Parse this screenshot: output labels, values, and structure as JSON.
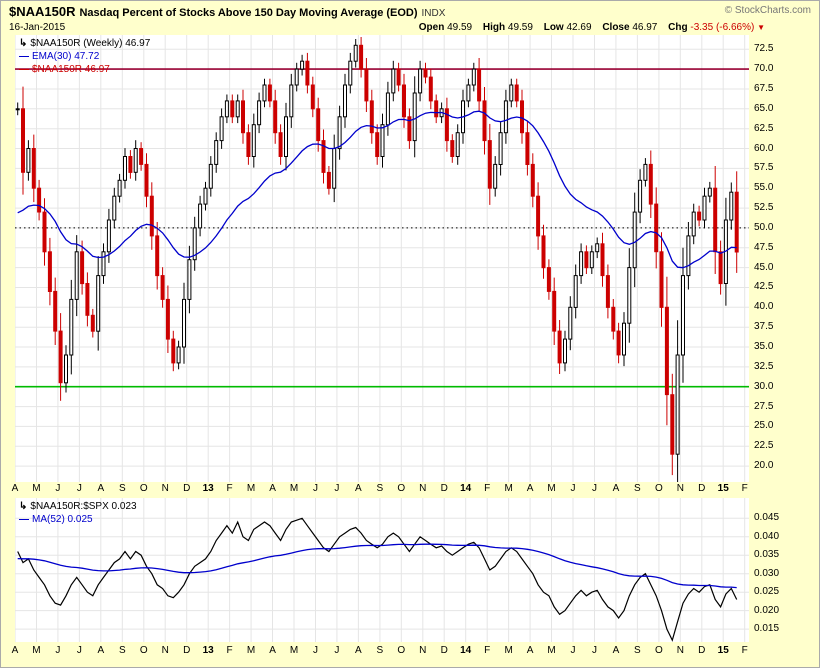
{
  "header": {
    "symbol": "$NAA150R",
    "title": "Nasdaq Percent of Stocks Above 150 Day Moving Average (EOD)",
    "exchange": "INDX",
    "date": "16-Jan-2015",
    "copyright": "© StockCharts.com",
    "quote": {
      "open_label": "Open",
      "open": "49.59",
      "high_label": "High",
      "high": "49.59",
      "low_label": "Low",
      "low": "42.69",
      "close_label": "Close",
      "close": "46.97",
      "chg_label": "Chg",
      "chg": "-3.35 (-6.66%)",
      "arrow": "▼",
      "chg_color": "#CC0000"
    }
  },
  "chart_data": [
    {
      "type": "candlestick",
      "title": "$NAA150R (Weekly)",
      "legend": [
        {
          "label": "$NAA150R (Weekly) 46.97",
          "color": "#000000"
        },
        {
          "label": "EMA(30) 47.72",
          "color": "#0000CC"
        },
        {
          "label": "$NAA150R 46.97",
          "color": "#CC0000"
        }
      ],
      "x_labels": [
        "A",
        "M",
        "J",
        "J",
        "A",
        "S",
        "O",
        "N",
        "D",
        "13",
        "F",
        "M",
        "A",
        "M",
        "J",
        "J",
        "A",
        "S",
        "O",
        "N",
        "D",
        "14",
        "F",
        "M",
        "A",
        "M",
        "J",
        "J",
        "A",
        "S",
        "O",
        "N",
        "D",
        "15",
        "F"
      ],
      "points_per_month": 4,
      "x_total_slots": 34.2,
      "ylim": [
        18.0,
        74.3
      ],
      "yticks": [
        72.5,
        70.0,
        67.5,
        65.0,
        62.5,
        60.0,
        57.5,
        55.0,
        52.5,
        50.0,
        47.5,
        45.0,
        42.5,
        40.0,
        37.5,
        35.0,
        32.5,
        30.0,
        27.5,
        25.0,
        22.5,
        20.0
      ],
      "tick_decimals": 1,
      "grid": true,
      "legend_position": "top-left",
      "up_color": "#000000",
      "down_color": "#CC0000",
      "hlines": [
        {
          "value": 70.0,
          "color": "#990033",
          "style": "solid"
        },
        {
          "value": 50.0,
          "color": "#000000",
          "style": "dotted"
        },
        {
          "value": 30.0,
          "color": "#00BB00",
          "style": "solid"
        }
      ],
      "overlays": [
        {
          "name": "EMA(30)",
          "period": 30,
          "seed": 51,
          "color": "#0000CC",
          "last": 47.72
        }
      ],
      "last_close": 46.97,
      "values": [
        65,
        57,
        60,
        55,
        52,
        47,
        42,
        37,
        30.5,
        34,
        41,
        47,
        43,
        39,
        37,
        44,
        47,
        51,
        54,
        56,
        59,
        57,
        60,
        58,
        54,
        49,
        44,
        41,
        36,
        33,
        35,
        41,
        46,
        50,
        53,
        55,
        58,
        61,
        64,
        66,
        64,
        66,
        62,
        59,
        63,
        66,
        68,
        66,
        62,
        59,
        64,
        68,
        70,
        71,
        68,
        65,
        61,
        57,
        55,
        60,
        64,
        68,
        71,
        73,
        70,
        66,
        62,
        59,
        63,
        67,
        70,
        68,
        64,
        61,
        67,
        70,
        69,
        66,
        64,
        65,
        61,
        59,
        62,
        66,
        68,
        70,
        66,
        61,
        55,
        58,
        62,
        66,
        68,
        66,
        62,
        58,
        54,
        49,
        45,
        42,
        37,
        33,
        36,
        40,
        44,
        47,
        45,
        47,
        48,
        44,
        40,
        37,
        34,
        38,
        45,
        52,
        56,
        58,
        53,
        47,
        40,
        29,
        21.5,
        34,
        44,
        49,
        52,
        51,
        54,
        55,
        47,
        43,
        51,
        54.5,
        46.97
      ]
    },
    {
      "type": "line",
      "title": "$NAA150R:$SPX",
      "legend": [
        {
          "label": "$NAA150R:$SPX 0.023",
          "color": "#000000"
        },
        {
          "label": "MA(52) 0.025",
          "color": "#0000CC"
        }
      ],
      "color": "#000000",
      "x_labels": [
        "A",
        "M",
        "J",
        "J",
        "A",
        "S",
        "O",
        "N",
        "D",
        "13",
        "F",
        "M",
        "A",
        "M",
        "J",
        "J",
        "A",
        "S",
        "O",
        "N",
        "D",
        "14",
        "F",
        "M",
        "A",
        "M",
        "J",
        "J",
        "A",
        "S",
        "O",
        "N",
        "D",
        "15",
        "F"
      ],
      "points_per_month": 4,
      "x_total_slots": 34.2,
      "ylim": [
        0.0115,
        0.0505
      ],
      "yticks": [
        0.045,
        0.04,
        0.035,
        0.03,
        0.025,
        0.02,
        0.015
      ],
      "tick_decimals": 3,
      "grid": true,
      "legend_position": "top-left",
      "overlays": [
        {
          "name": "MA(52)",
          "period": 52,
          "seed": 0.034,
          "color": "#0000CC",
          "last": 0.025
        }
      ],
      "last": 0.023,
      "values": [
        0.036,
        0.033,
        0.034,
        0.031,
        0.029,
        0.027,
        0.024,
        0.022,
        0.0215,
        0.024,
        0.027,
        0.029,
        0.027,
        0.025,
        0.024,
        0.027,
        0.029,
        0.031,
        0.033,
        0.034,
        0.036,
        0.034,
        0.036,
        0.035,
        0.032,
        0.03,
        0.027,
        0.026,
        0.024,
        0.0235,
        0.025,
        0.027,
        0.03,
        0.032,
        0.033,
        0.034,
        0.036,
        0.039,
        0.041,
        0.043,
        0.041,
        0.044,
        0.04,
        0.039,
        0.042,
        0.043,
        0.044,
        0.043,
        0.041,
        0.039,
        0.042,
        0.044,
        0.0445,
        0.045,
        0.043,
        0.041,
        0.039,
        0.037,
        0.036,
        0.038,
        0.04,
        0.041,
        0.042,
        0.0425,
        0.041,
        0.039,
        0.038,
        0.037,
        0.038,
        0.04,
        0.041,
        0.04,
        0.038,
        0.036,
        0.038,
        0.04,
        0.039,
        0.038,
        0.037,
        0.0375,
        0.036,
        0.035,
        0.036,
        0.037,
        0.038,
        0.0385,
        0.037,
        0.034,
        0.031,
        0.032,
        0.034,
        0.036,
        0.037,
        0.036,
        0.034,
        0.032,
        0.03,
        0.027,
        0.025,
        0.024,
        0.021,
        0.019,
        0.02,
        0.022,
        0.024,
        0.0255,
        0.024,
        0.025,
        0.0255,
        0.023,
        0.021,
        0.02,
        0.018,
        0.02,
        0.024,
        0.027,
        0.029,
        0.03,
        0.027,
        0.024,
        0.02,
        0.015,
        0.012,
        0.017,
        0.022,
        0.0245,
        0.026,
        0.025,
        0.0265,
        0.027,
        0.023,
        0.021,
        0.0245,
        0.026,
        0.023
      ]
    }
  ]
}
